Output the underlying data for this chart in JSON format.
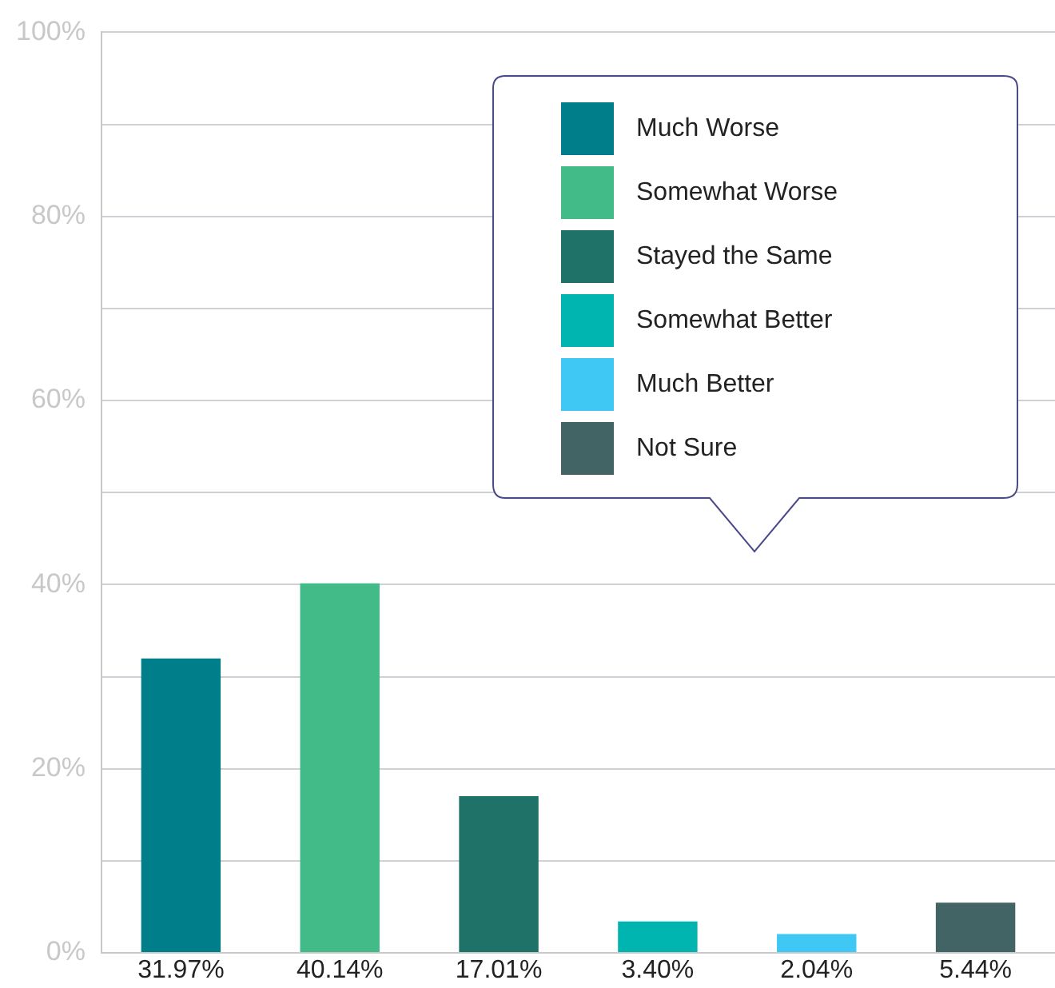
{
  "chart_data": {
    "type": "bar",
    "categories": [
      null,
      null,
      null,
      null,
      null,
      null
    ],
    "series": [
      {
        "name": "Much Worse",
        "color": "#007e8a",
        "values": [
          31.97,
          null,
          null,
          null,
          null,
          null
        ],
        "value_labels": [
          "31.97%",
          null,
          null,
          null,
          null,
          null
        ]
      },
      {
        "name": "Somewhat Worse",
        "color": "#42bb88",
        "values": [
          null,
          40.14,
          null,
          null,
          null,
          null
        ],
        "value_labels": [
          null,
          "40.14%",
          null,
          null,
          null,
          null
        ]
      },
      {
        "name": "Stayed the Same",
        "color": "#1f7268",
        "values": [
          null,
          null,
          17.01,
          null,
          null,
          null
        ],
        "value_labels": [
          null,
          null,
          "17.01%",
          null,
          null,
          null
        ]
      },
      {
        "name": "Somewhat Better",
        "color": "#00b5b0",
        "values": [
          null,
          null,
          null,
          3.4,
          null,
          null
        ],
        "value_labels": [
          null,
          null,
          null,
          "3.40%",
          null,
          null
        ]
      },
      {
        "name": "Much Better",
        "color": "#3fc8f4",
        "values": [
          null,
          null,
          null,
          null,
          2.04,
          null
        ],
        "value_labels": [
          null,
          null,
          null,
          null,
          "2.04%",
          null
        ]
      },
      {
        "name": "Not Sure",
        "color": "#426464",
        "values": [
          null,
          null,
          null,
          null,
          null,
          5.44
        ],
        "value_labels": [
          null,
          null,
          null,
          null,
          null,
          "5.44%"
        ]
      }
    ],
    "ylim": [
      0,
      100
    ],
    "yticks": [
      {
        "value": 0,
        "label": "0%"
      },
      {
        "value": 10,
        "label": null
      },
      {
        "value": 20,
        "label": "20%"
      },
      {
        "value": 30,
        "label": null
      },
      {
        "value": 40,
        "label": "40%"
      },
      {
        "value": 50,
        "label": null
      },
      {
        "value": 60,
        "label": "60%"
      },
      {
        "value": 70,
        "label": null
      },
      {
        "value": 80,
        "label": "80%"
      },
      {
        "value": 90,
        "label": null
      },
      {
        "value": 100,
        "label": "100%"
      }
    ],
    "grid": "y",
    "legend": "top right"
  }
}
